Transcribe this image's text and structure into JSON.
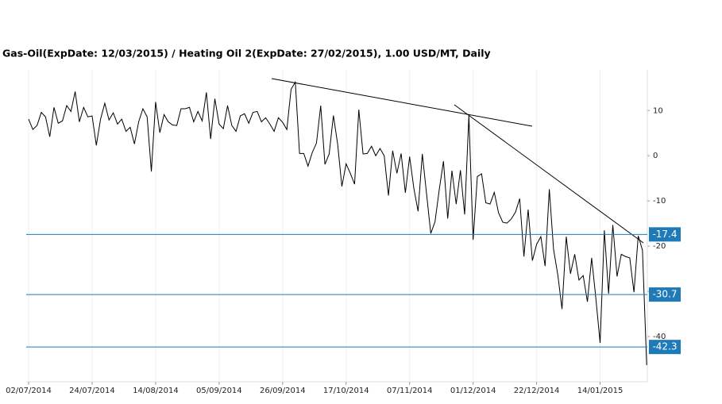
{
  "chart_data": {
    "type": "line",
    "title": "Gas-Oil(ExpDate: 12/03/2015) / Heating Oil 2(ExpDate: 27/02/2015), 1.00 USD/MT, Daily",
    "categories": [
      "02/07/2014",
      null,
      null,
      null,
      null,
      null,
      null,
      null,
      null,
      null,
      null,
      null,
      null,
      null,
      null,
      "24/07/2014",
      null,
      null,
      null,
      null,
      null,
      null,
      null,
      null,
      null,
      null,
      null,
      null,
      null,
      null,
      "14/08/2014",
      null,
      null,
      null,
      null,
      null,
      null,
      null,
      null,
      null,
      null,
      null,
      null,
      null,
      null,
      "05/09/2014",
      null,
      null,
      null,
      null,
      null,
      null,
      null,
      null,
      null,
      null,
      null,
      null,
      null,
      null,
      "26/09/2014",
      null,
      null,
      null,
      null,
      null,
      null,
      null,
      null,
      null,
      null,
      null,
      null,
      null,
      null,
      "17/10/2014",
      null,
      null,
      null,
      null,
      null,
      null,
      null,
      null,
      null,
      null,
      null,
      null,
      null,
      null,
      "07/11/2014",
      null,
      null,
      null,
      null,
      null,
      null,
      null,
      null,
      null,
      null,
      null,
      null,
      null,
      null,
      "01/12/2014",
      null,
      null,
      null,
      null,
      null,
      null,
      null,
      null,
      null,
      null,
      null,
      null,
      null,
      null,
      "22/12/2014",
      null,
      null,
      null,
      null,
      null,
      null,
      null,
      null,
      null,
      null,
      null,
      null,
      null,
      null,
      "14/01/2015",
      null,
      null,
      null,
      null,
      null,
      null,
      null,
      null,
      null,
      null,
      null
    ],
    "values": [
      8.1,
      5.8,
      6.7,
      9.6,
      8.6,
      4.2,
      10.7,
      7.2,
      7.7,
      11.1,
      9.8,
      14.2,
      7.5,
      10.7,
      8.6,
      8.8,
      2.3,
      8.1,
      11.6,
      7.9,
      9.5,
      7.0,
      8.1,
      5.4,
      6.3,
      2.6,
      7.5,
      10.4,
      8.6,
      -3.5,
      11.9,
      5.1,
      9.1,
      7.5,
      6.8,
      6.7,
      10.4,
      10.4,
      10.7,
      7.5,
      9.8,
      7.7,
      14.0,
      3.7,
      12.6,
      7.0,
      6.0,
      11.1,
      6.7,
      5.4,
      8.8,
      9.3,
      7.2,
      9.6,
      9.8,
      7.5,
      8.4,
      7.0,
      5.4,
      8.4,
      7.4,
      5.8,
      14.7,
      16.3,
      0.5,
      0.5,
      -2.3,
      0.7,
      2.8,
      11.1,
      -1.9,
      0.4,
      8.9,
      2.6,
      -6.8,
      -1.8,
      -3.9,
      -6.3,
      10.2,
      0.4,
      0.5,
      2.1,
      0,
      1.6,
      0,
      -8.8,
      1.1,
      -3.9,
      0.5,
      -8.2,
      -0.2,
      -7.2,
      -12.3,
      0.4,
      -8.4,
      -17.2,
      -14.6,
      -7.5,
      -1.2,
      -13.9,
      -3.3,
      -10.7,
      -3.2,
      -13.0,
      8.9,
      -18.6,
      -4.6,
      -4.0,
      -10.4,
      -10.7,
      -8.1,
      -12.6,
      -14.7,
      -14.9,
      -14.0,
      -12.5,
      -9.5,
      -22.3,
      -11.9,
      -23.2,
      -19.6,
      -17.9,
      -24.4,
      -7.4,
      -20.7,
      -26.3,
      -33.9,
      -17.9,
      -26.1,
      -21.8,
      -27.5,
      -26.5,
      -32.3,
      -22.6,
      -31.6,
      -41.4,
      -16.5,
      -30.5,
      -15.3,
      -26.7,
      -21.8,
      -22.3,
      -22.6,
      -30.2,
      -17.7,
      -20.9,
      -46.3
    ],
    "color": "#000000",
    "ylim": [
      -50,
      19
    ],
    "yticks": [
      -40,
      -30,
      -20,
      -10,
      0,
      10
    ],
    "levels": [
      -17.4,
      -30.7,
      -42.3
    ],
    "level_color": "#1f7ab8"
  }
}
